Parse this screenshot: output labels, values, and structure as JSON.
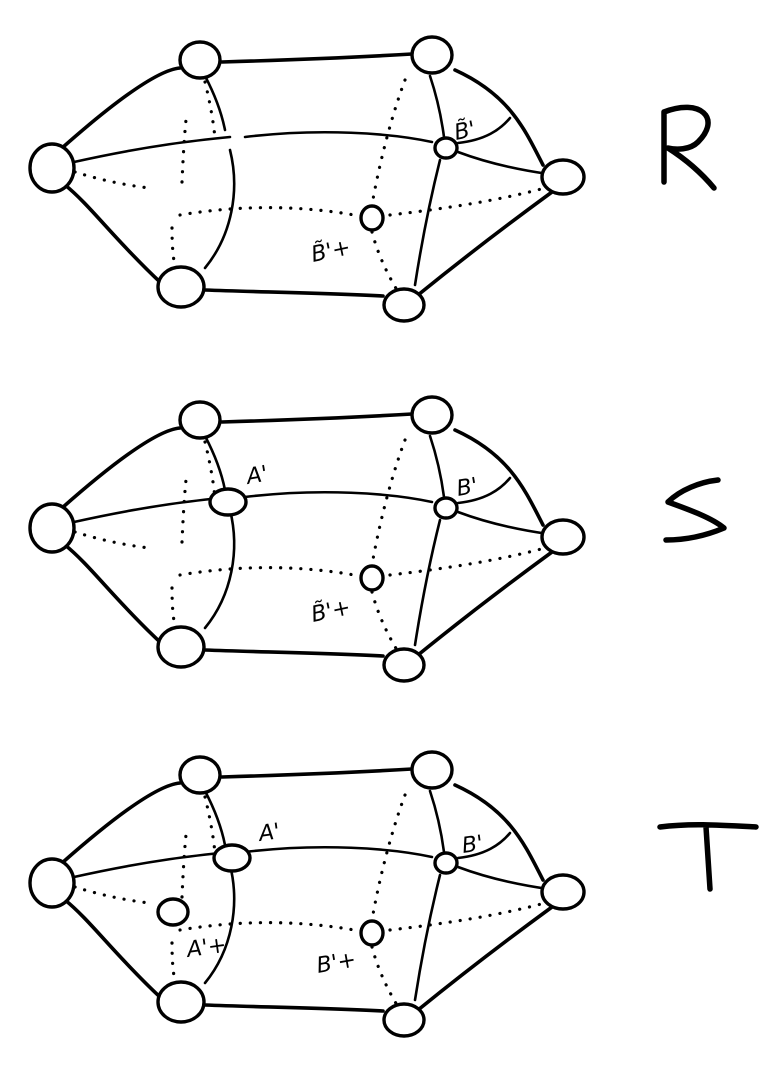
{
  "panels": [
    {
      "id": "R",
      "letter": "R",
      "label_a": "",
      "label_b": "B̃'",
      "label_c": "B̃'+",
      "label_d": ""
    },
    {
      "id": "S",
      "letter": "S",
      "label_a": "A'",
      "label_b": "B'",
      "label_c": "B̃'+",
      "label_d": ""
    },
    {
      "id": "T",
      "letter": "T",
      "label_a": "A'",
      "label_b": "B'",
      "label_c": "B'+",
      "label_d": "A'+"
    }
  ]
}
